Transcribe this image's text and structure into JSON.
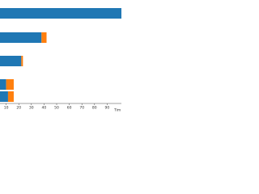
{
  "chart_data": {
    "type": "stacked-barh",
    "categories": [
      null,
      null,
      null,
      null,
      null
    ],
    "series": [
      {
        "color": "#1f77b4",
        "values": [
          102,
          38,
          22,
          10,
          11.5
        ]
      },
      {
        "color": "#ff7f0e",
        "values": [
          0,
          4,
          1.3,
          6,
          4.5
        ]
      }
    ],
    "xlabel": "Tim",
    "xlim": [
      0,
      100
    ],
    "xticks": [
      10,
      20,
      30,
      40,
      50,
      60,
      70,
      80,
      90
    ]
  }
}
